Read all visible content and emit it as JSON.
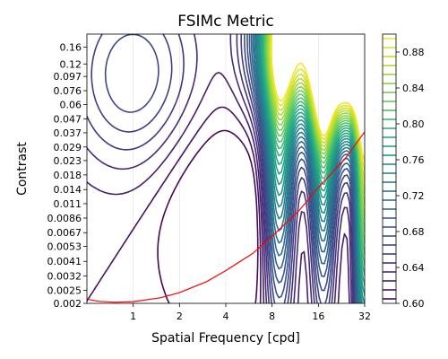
{
  "chart_data": {
    "type": "contour",
    "title": "FSIMc Metric",
    "xlabel": "Spatial Frequency [cpd]",
    "ylabel": "Contrast",
    "x_scale": "log2",
    "y_scale": "log",
    "xlim": [
      0.5,
      32
    ],
    "ylim": [
      0.002,
      0.2
    ],
    "x_ticks": [
      1,
      2,
      4,
      8,
      16,
      32
    ],
    "x_tick_labels": [
      "1",
      "2",
      "4",
      "8",
      "16",
      "32"
    ],
    "y_ticks": [
      0.002,
      0.0025,
      0.0032,
      0.0041,
      0.0053,
      0.0067,
      0.0086,
      0.011,
      0.014,
      0.018,
      0.023,
      0.029,
      0.037,
      0.047,
      0.06,
      0.076,
      0.097,
      0.12,
      0.16
    ],
    "y_tick_labels": [
      "0.002",
      "0.0025",
      "0.0032",
      "0.0041",
      "0.0053",
      "0.0067",
      "0.0086",
      "0.011",
      "0.014",
      "0.018",
      "0.023",
      "0.029",
      "0.037",
      "0.047",
      "0.06",
      "0.076",
      "0.097",
      "0.12",
      "0.16"
    ],
    "grid": true,
    "colormap": "viridis",
    "colorbar": {
      "min": 0.6,
      "max": 0.9,
      "levels": 30,
      "ticks": [
        0.6,
        0.64,
        0.68,
        0.72,
        0.76,
        0.8,
        0.84,
        0.88
      ],
      "tick_labels": [
        "0.60",
        "0.64",
        "0.68",
        "0.72",
        "0.76",
        "0.80",
        "0.84",
        "0.88"
      ]
    },
    "threshold_curve": {
      "color": "#ff0000",
      "x": [
        0.5,
        0.6,
        0.75,
        1,
        1.5,
        2,
        3,
        4,
        6,
        8,
        12,
        16,
        24,
        32
      ],
      "y": [
        0.00215,
        0.00207,
        0.00204,
        0.00206,
        0.0022,
        0.0024,
        0.0029,
        0.0035,
        0.0047,
        0.0063,
        0.0098,
        0.0145,
        0.024,
        0.0375
      ]
    }
  },
  "colors": {
    "viridis": [
      "#440154",
      "#482878",
      "#3e4989",
      "#31688e",
      "#26828e",
      "#1f9e89",
      "#35b779",
      "#6ece58",
      "#b5de2b",
      "#fde725"
    ],
    "curve": "#ff0000",
    "grid": "#e6e6e6"
  }
}
